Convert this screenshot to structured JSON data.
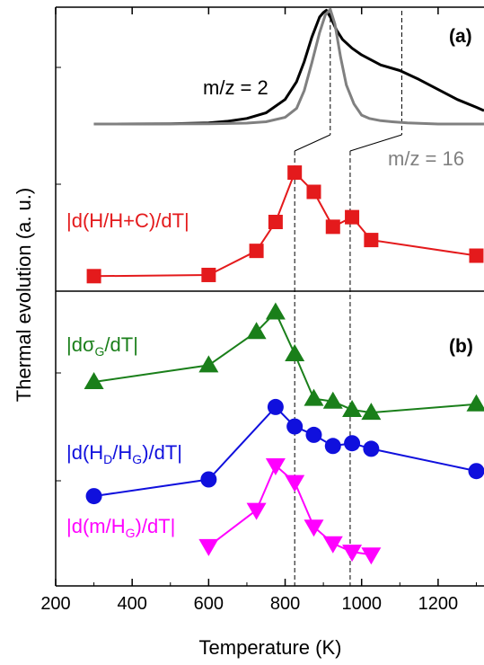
{
  "chart_data": {
    "type": "line",
    "xlabel": "Temperature (K)",
    "ylabel": "Thermal evolution (a. u.)",
    "xlim": [
      200,
      1320
    ],
    "xticks": [
      200,
      400,
      600,
      800,
      1000,
      1200
    ],
    "grid": false,
    "vlines": [
      825,
      970
    ],
    "panel_a": {
      "tag": "(a)",
      "ms_series": [
        {
          "label": "m/z = 2",
          "color": "#000000",
          "peak": 908,
          "x": [
            300,
            500,
            600,
            650,
            700,
            750,
            800,
            830,
            850,
            870,
            890,
            900,
            908,
            920,
            935,
            950,
            975,
            1000,
            1050,
            1100,
            1150,
            1200,
            1250,
            1300,
            1320
          ],
          "y": [
            0.0,
            0.002,
            0.01,
            0.025,
            0.05,
            0.1,
            0.22,
            0.38,
            0.56,
            0.78,
            0.96,
            1.0,
            1.02,
            0.95,
            0.84,
            0.76,
            0.68,
            0.62,
            0.53,
            0.48,
            0.4,
            0.31,
            0.22,
            0.15,
            0.12
          ]
        },
        {
          "label": "m/z = 16",
          "color": "#808080",
          "peak": 918,
          "x": [
            300,
            600,
            700,
            750,
            800,
            830,
            850,
            870,
            890,
            905,
            918,
            930,
            945,
            960,
            980,
            1000,
            1020,
            1050,
            1080,
            1120,
            1200,
            1320
          ],
          "y": [
            0.0,
            0.002,
            0.008,
            0.02,
            0.06,
            0.14,
            0.3,
            0.55,
            0.82,
            0.98,
            1.03,
            0.9,
            0.6,
            0.35,
            0.18,
            0.08,
            0.05,
            0.03,
            0.02,
            0.01,
            0.0,
            0.0
          ]
        }
      ],
      "series": [
        {
          "label": "|d(H/H+C)/dT|",
          "color": "#e41a1c",
          "marker": "square",
          "x": [
            300,
            600,
            725,
            775,
            825,
            875,
            925,
            975,
            1025,
            1300
          ],
          "y": [
            0.05,
            0.06,
            0.26,
            0.5,
            0.91,
            0.75,
            0.46,
            0.54,
            0.35,
            0.22
          ]
        }
      ]
    },
    "panel_b": {
      "tag": "(b)",
      "series": [
        {
          "label": "|dσ_G/dT|",
          "label_main": "|dσ",
          "label_sub": "G",
          "label_tail": "/dT|",
          "color": "#1a7f1a",
          "marker": "triangle-up",
          "x": [
            300,
            600,
            725,
            775,
            825,
            875,
            925,
            975,
            1025,
            1300
          ],
          "y": [
            0.7,
            0.76,
            0.88,
            0.95,
            0.8,
            0.64,
            0.63,
            0.6,
            0.59,
            0.62
          ]
        },
        {
          "label": "|d(H_D/H_G)/dT|",
          "label_main": "|d(H",
          "label_sub": "D",
          "label_mid": "/H",
          "label_sub2": "G",
          "label_tail": ")/dT|",
          "color": "#1010dd",
          "marker": "circle",
          "x": [
            300,
            600,
            775,
            825,
            875,
            925,
            975,
            1025,
            1300
          ],
          "y": [
            0.29,
            0.35,
            0.61,
            0.54,
            0.51,
            0.47,
            0.48,
            0.46,
            0.38
          ]
        },
        {
          "label": "|d(m/H_G)/dT|",
          "label_main": "|d(m/H",
          "label_sub": "G",
          "label_tail": ")/dT|",
          "color": "#ff00ff",
          "marker": "triangle-down",
          "x": [
            600,
            725,
            775,
            825,
            875,
            925,
            975,
            1025
          ],
          "y": [
            0.11,
            0.24,
            0.4,
            0.34,
            0.18,
            0.12,
            0.09,
            0.08
          ]
        }
      ]
    }
  }
}
